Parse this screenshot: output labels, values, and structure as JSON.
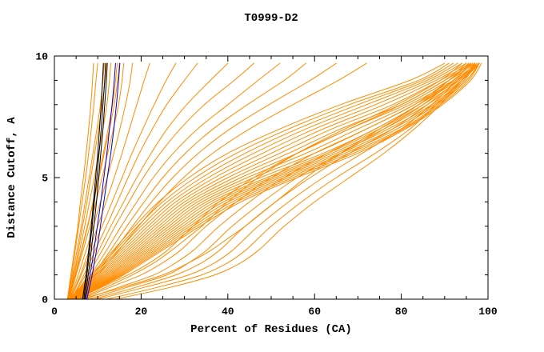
{
  "chart_data": {
    "type": "line",
    "title": "T0999-D2",
    "xlabel": "Percent of Residues (CA)",
    "ylabel": "Distance Cutoff, A",
    "xlim": [
      0,
      100
    ],
    "ylim": [
      0,
      10
    ],
    "x_ticks": [
      0,
      20,
      40,
      60,
      80,
      100
    ],
    "y_ticks": [
      0,
      5,
      10
    ],
    "x_minor_step": 5,
    "y_minor_step": 1,
    "grid": false,
    "legend": "none",
    "colors": {
      "orange": "#ff8c00",
      "black": "#000000",
      "blue": "#0000cc"
    },
    "y_samples": [
      0,
      0.5,
      1,
      1.5,
      2,
      2.5,
      3,
      4,
      5,
      6,
      7,
      8,
      9,
      9.7
    ],
    "series": [
      {
        "color": "orange",
        "x": [
          3,
          3.4,
          3.8,
          4.2,
          4.6,
          5,
          5.4,
          6,
          6.7,
          7.3,
          7.9,
          8.4,
          8.8,
          9
        ]
      },
      {
        "color": "orange",
        "x": [
          3,
          3.5,
          4,
          4.4,
          4.8,
          5.2,
          5.6,
          6.4,
          7.2,
          7.9,
          8.5,
          9.1,
          9.6,
          10
        ]
      },
      {
        "color": "orange",
        "x": [
          3,
          3.6,
          4.2,
          4.7,
          5.2,
          5.7,
          6.2,
          7.1,
          8,
          8.9,
          9.8,
          10.6,
          11.2,
          11.5
        ]
      },
      {
        "color": "orange",
        "x": [
          3.1,
          3.8,
          4.4,
          5,
          5.5,
          6,
          6.5,
          7.5,
          8.4,
          9.3,
          10.2,
          11,
          11.7,
          12
        ]
      },
      {
        "color": "orange",
        "x": [
          3.2,
          3.9,
          4.6,
          5.2,
          5.8,
          6.4,
          7,
          8.1,
          9.2,
          10.2,
          11.2,
          12.1,
          12.7,
          13
        ]
      },
      {
        "color": "orange",
        "x": [
          3.2,
          4,
          4.8,
          5.5,
          6.2,
          6.9,
          7.6,
          8.9,
          10.1,
          11.3,
          12.4,
          13.4,
          14.1,
          14.5
        ]
      },
      {
        "color": "orange",
        "x": [
          3.3,
          4.1,
          4.9,
          5.6,
          6.3,
          7,
          7.7,
          9,
          10.3,
          11.5,
          12.7,
          13.8,
          14.6,
          15
        ]
      },
      {
        "color": "orange",
        "x": [
          3.4,
          4.2,
          5,
          5.8,
          6.6,
          7.4,
          8.2,
          9.6,
          11,
          12.3,
          13.6,
          14.8,
          15.6,
          16
        ]
      },
      {
        "color": "orange",
        "x": [
          3.5,
          4.5,
          5.5,
          6.4,
          7.3,
          8.2,
          9,
          10.6,
          12.2,
          13.7,
          15.1,
          16.4,
          17.5,
          18
        ]
      },
      {
        "color": "orange",
        "x": [
          3.6,
          4.8,
          6,
          7,
          8,
          9,
          10,
          11.9,
          13.8,
          15.6,
          17.3,
          19,
          20.7,
          22
        ]
      },
      {
        "color": "orange",
        "x": [
          3.8,
          5,
          6.2,
          7.4,
          8.6,
          9.8,
          11,
          13.3,
          15.6,
          17.9,
          20.4,
          23,
          25.8,
          28
        ]
      },
      {
        "color": "orange",
        "x": [
          4,
          5.4,
          6.8,
          8.1,
          9.4,
          10.7,
          12,
          14.5,
          17,
          19.6,
          22.6,
          25.9,
          30,
          33
        ]
      },
      {
        "color": "orange",
        "x": [
          4,
          5.6,
          7.2,
          8.7,
          10.2,
          11.6,
          13,
          16,
          19,
          22.3,
          26,
          30.5,
          36,
          40
        ]
      },
      {
        "color": "orange",
        "x": [
          4.2,
          6,
          7.8,
          9.4,
          11,
          12.5,
          14,
          17.2,
          20.5,
          24.4,
          29,
          34.6,
          41.5,
          46
        ]
      },
      {
        "color": "orange",
        "x": [
          4.4,
          6.4,
          8.4,
          10.2,
          12,
          13.7,
          15.4,
          19,
          22.8,
          27.4,
          33,
          40,
          47,
          52
        ]
      },
      {
        "color": "orange",
        "x": [
          4.5,
          6.7,
          8.9,
          10.9,
          12.9,
          14.8,
          16.7,
          20.7,
          25,
          30.2,
          36.6,
          44.5,
          53,
          58
        ]
      },
      {
        "color": "orange",
        "x": [
          4.6,
          7,
          9.4,
          11.6,
          13.8,
          15.9,
          18,
          22.4,
          27.3,
          33.2,
          40.5,
          49.5,
          59,
          65
        ]
      },
      {
        "color": "orange",
        "x": [
          4.8,
          7.4,
          10,
          12.4,
          14.8,
          17.1,
          19.4,
          24.3,
          29.8,
          36.5,
          45,
          55,
          65.5,
          72
        ]
      },
      {
        "color": "orange",
        "x": [
          3.5,
          6,
          8.5,
          11,
          13.5,
          16,
          18.5,
          24,
          31,
          40,
          52,
          66,
          82,
          90
        ]
      },
      {
        "color": "orange",
        "x": [
          3.6,
          6.2,
          8.8,
          11.4,
          14,
          16.6,
          19.2,
          25,
          32.5,
          42,
          54,
          68,
          84,
          91
        ]
      },
      {
        "color": "orange",
        "x": [
          3.7,
          6.5,
          9.2,
          11.9,
          14.6,
          17.3,
          20,
          26,
          34,
          44,
          56,
          70,
          85,
          92
        ]
      },
      {
        "color": "orange",
        "x": [
          3.8,
          6.7,
          9.6,
          12.4,
          15.2,
          18,
          20.8,
          27,
          35.5,
          46,
          58,
          72,
          86,
          93
        ]
      },
      {
        "color": "orange",
        "x": [
          3.9,
          7,
          10,
          12.9,
          15.8,
          18.7,
          21.6,
          28,
          37,
          48,
          60,
          74,
          87,
          94
        ]
      },
      {
        "color": "orange",
        "x": [
          4,
          7.2,
          10.4,
          13.4,
          16.4,
          19.4,
          22.4,
          29,
          38.5,
          50,
          62,
          76,
          88,
          95
        ]
      },
      {
        "color": "orange",
        "x": [
          4.1,
          7.5,
          10.8,
          13.9,
          17,
          20.1,
          23.2,
          30,
          40,
          52,
          64,
          78,
          89,
          96
        ]
      },
      {
        "color": "orange",
        "x": [
          4.2,
          7.7,
          11.2,
          14.4,
          17.6,
          20.8,
          24,
          31,
          41.5,
          54,
          66,
          80,
          90,
          96.5
        ]
      },
      {
        "color": "orange",
        "x": [
          4.3,
          8,
          11.6,
          14.9,
          18.2,
          21.5,
          24.8,
          32,
          43,
          56,
          68,
          81,
          91,
          97
        ]
      },
      {
        "color": "orange",
        "x": [
          4.4,
          8.2,
          12,
          15.4,
          18.8,
          22.2,
          25.6,
          33,
          44.5,
          58,
          70,
          82,
          92,
          97.5
        ]
      },
      {
        "color": "orange",
        "x": [
          4.5,
          8.5,
          12.4,
          15.9,
          19.4,
          22.9,
          26.4,
          34,
          46,
          60,
          72,
          83,
          92.5,
          98
        ]
      },
      {
        "color": "orange",
        "x": [
          4.6,
          8.7,
          12.8,
          16.4,
          20,
          23.6,
          27.2,
          35,
          47.5,
          62,
          74,
          84,
          93,
          98
        ]
      },
      {
        "color": "orange",
        "x": [
          4.7,
          9,
          13.2,
          16.9,
          20.6,
          24.3,
          28,
          36,
          49,
          63,
          75,
          85,
          93.5,
          98
        ]
      },
      {
        "color": "orange",
        "x": [
          4.8,
          9.2,
          13.6,
          17.4,
          21.2,
          25,
          28.8,
          37,
          50,
          64,
          76,
          86,
          94,
          98
        ]
      },
      {
        "color": "orange",
        "x": [
          4.9,
          9.5,
          14,
          17.9,
          21.8,
          25.7,
          29.6,
          38,
          51,
          65,
          77,
          87,
          94,
          97
        ]
      },
      {
        "color": "orange",
        "x": [
          5,
          9.7,
          14.4,
          18.4,
          22.4,
          26.4,
          30.4,
          39,
          52,
          66,
          78,
          87.5,
          94.5,
          97
        ]
      },
      {
        "color": "orange",
        "x": [
          5.1,
          10,
          14.8,
          18.9,
          23,
          27.1,
          31.2,
          40,
          53,
          67,
          79,
          88,
          95,
          98
        ]
      },
      {
        "color": "orange",
        "x": [
          5.2,
          10.2,
          15.2,
          19.4,
          23.6,
          27.8,
          32,
          41,
          54,
          68,
          80,
          88.5,
          95,
          98
        ]
      },
      {
        "color": "orange",
        "x": [
          5.3,
          10.5,
          15.6,
          19.9,
          24.2,
          28.5,
          32.8,
          42,
          55,
          69,
          80.5,
          89,
          95.5,
          98
        ]
      },
      {
        "color": "orange",
        "x": [
          5.4,
          10.7,
          16,
          20.4,
          24.8,
          29.2,
          33.6,
          43,
          56,
          70,
          81,
          89.5,
          96,
          98.5
        ]
      },
      {
        "color": "orange",
        "x": [
          5,
          11,
          17,
          22,
          26,
          29,
          32,
          38,
          46,
          56,
          68,
          80,
          90,
          95
        ]
      },
      {
        "color": "orange",
        "x": [
          6,
          13,
          20,
          25,
          29,
          32,
          35,
          42,
          50,
          60,
          72,
          83,
          91,
          96
        ]
      },
      {
        "color": "orange",
        "x": [
          7,
          15,
          23,
          28,
          32,
          35,
          38,
          45,
          53,
          63,
          74,
          84,
          92,
          96
        ]
      },
      {
        "color": "orange",
        "x": [
          8,
          17,
          26,
          31,
          35,
          38,
          41,
          48,
          56,
          66,
          76,
          85,
          92,
          96.5
        ]
      },
      {
        "color": "orange",
        "x": [
          9,
          19,
          28,
          34,
          38,
          41,
          44,
          51,
          59,
          68,
          78,
          86,
          93,
          97
        ]
      },
      {
        "color": "orange",
        "x": [
          10,
          21,
          31,
          37,
          41,
          44,
          47,
          54,
          62,
          71,
          80,
          87,
          93,
          97
        ]
      },
      {
        "color": "orange",
        "x": [
          12,
          24,
          34,
          40,
          44,
          47,
          50,
          57,
          65,
          74,
          82,
          88,
          94,
          97.5
        ]
      },
      {
        "color": "orange",
        "x": [
          14,
          27,
          37,
          43,
          47,
          50,
          53,
          60,
          68,
          76,
          83,
          89,
          94,
          98
        ]
      },
      {
        "color": "orange",
        "x": [
          5.5,
          12,
          18,
          23,
          27,
          30.5,
          34,
          40,
          47,
          56,
          67,
          79,
          89,
          94
        ]
      },
      {
        "color": "orange",
        "x": [
          6,
          16,
          25,
          31,
          36,
          40,
          44,
          51,
          58,
          66,
          75,
          84,
          91,
          95.5
        ]
      },
      {
        "color": "black",
        "x": [
          6.5,
          6.9,
          7.3,
          7.6,
          7.9,
          8.2,
          8.5,
          9,
          9.5,
          10,
          10.4,
          10.8,
          11.1,
          11.3
        ]
      },
      {
        "color": "black",
        "x": [
          6.8,
          7.1,
          7.5,
          7.8,
          8.1,
          8.4,
          8.7,
          9.2,
          9.8,
          10.3,
          10.8,
          11.2,
          11.6,
          11.8
        ]
      },
      {
        "color": "black",
        "x": [
          7,
          7.4,
          7.8,
          8.2,
          8.5,
          8.8,
          9.1,
          9.7,
          10.2,
          10.7,
          11.2,
          11.6,
          12,
          12.2
        ]
      },
      {
        "color": "blue",
        "x": [
          7.2,
          7.7,
          8.2,
          8.7,
          9.1,
          9.5,
          9.9,
          10.7,
          11.4,
          12.1,
          12.7,
          13.3,
          13.8,
          14.1
        ]
      },
      {
        "color": "blue",
        "x": [
          7.5,
          8.1,
          8.7,
          9.2,
          9.7,
          10.2,
          10.6,
          11.4,
          12.2,
          13,
          13.7,
          14.3,
          14.8,
          15.1
        ]
      }
    ]
  }
}
